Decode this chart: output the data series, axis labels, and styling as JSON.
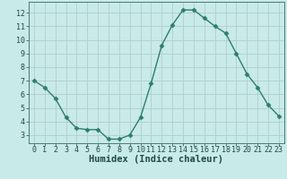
{
  "x": [
    0,
    1,
    2,
    3,
    4,
    5,
    6,
    7,
    8,
    9,
    10,
    11,
    12,
    13,
    14,
    15,
    16,
    17,
    18,
    19,
    20,
    21,
    22,
    23
  ],
  "y": [
    7.0,
    6.5,
    5.7,
    4.3,
    3.5,
    3.4,
    3.4,
    2.7,
    2.7,
    3.0,
    4.3,
    6.8,
    9.6,
    11.1,
    12.2,
    12.2,
    11.6,
    11.0,
    10.5,
    9.0,
    7.5,
    6.5,
    5.2,
    4.4
  ],
  "xlabel": "Humidex (Indice chaleur)",
  "line_color": "#2e7d6e",
  "marker": "D",
  "marker_size": 2.5,
  "bg_color": "#c8eae8",
  "grid_color": "#b0cece",
  "tick_color": "#1e4a48",
  "xlim": [
    -0.5,
    23.5
  ],
  "ylim": [
    2.4,
    12.8
  ],
  "xticks": [
    0,
    1,
    2,
    3,
    4,
    5,
    6,
    7,
    8,
    9,
    10,
    11,
    12,
    13,
    14,
    15,
    16,
    17,
    18,
    19,
    20,
    21,
    22,
    23
  ],
  "yticks": [
    3,
    4,
    5,
    6,
    7,
    8,
    9,
    10,
    11,
    12
  ],
  "spine_color": "#4a7a78",
  "xlabel_fontsize": 7.5,
  "tick_fontsize": 6.0
}
